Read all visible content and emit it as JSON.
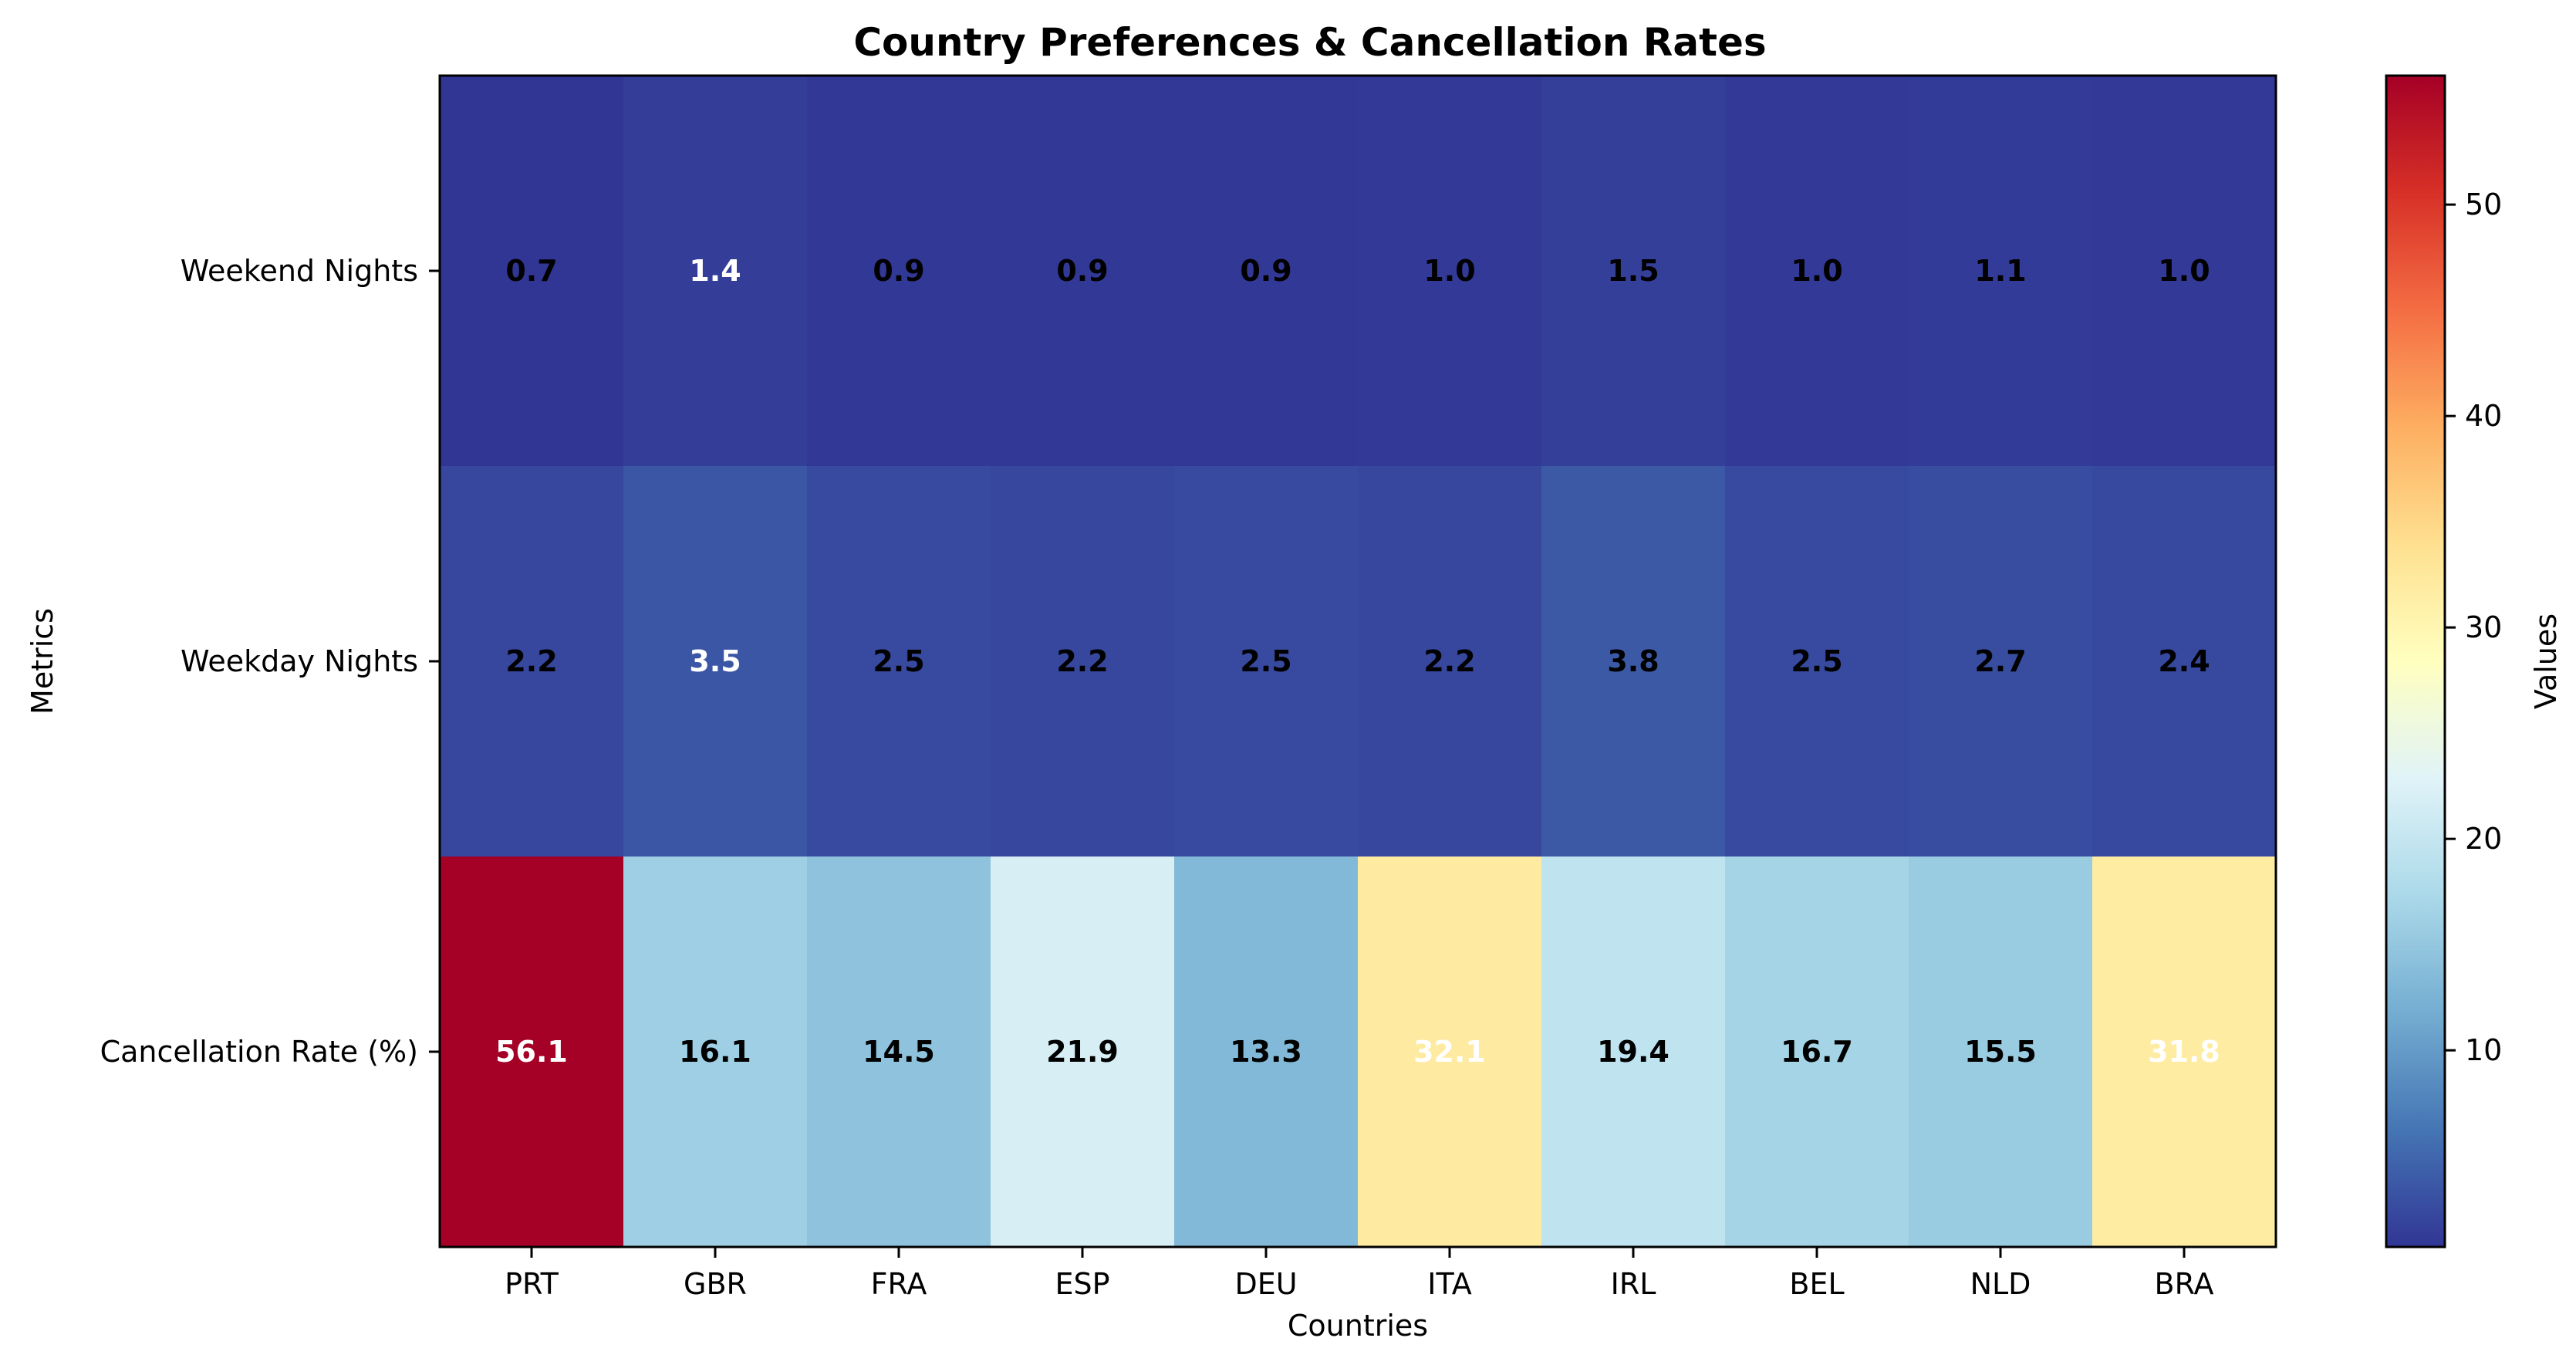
{
  "chart_data": {
    "type": "heatmap",
    "title": "Country Preferences & Cancellation Rates",
    "xlabel": "Countries",
    "ylabel": "Metrics",
    "x_categories": [
      "PRT",
      "GBR",
      "FRA",
      "ESP",
      "DEU",
      "ITA",
      "IRL",
      "BEL",
      "NLD",
      "BRA"
    ],
    "y_categories": [
      "Weekend Nights",
      "Weekday Nights",
      "Cancellation Rate (%)"
    ],
    "values": [
      [
        0.7,
        1.4,
        0.9,
        0.9,
        0.9,
        1.0,
        1.5,
        1.0,
        1.1,
        1.0
      ],
      [
        2.2,
        3.5,
        2.5,
        2.2,
        2.5,
        2.2,
        3.8,
        2.5,
        2.7,
        2.4
      ],
      [
        56.1,
        16.1,
        14.5,
        21.9,
        13.3,
        32.1,
        19.4,
        16.7,
        15.5,
        31.8
      ]
    ],
    "colorbar": {
      "label": "Values",
      "colormap": "RdYlBu_r",
      "range": [
        0.7,
        56.1
      ],
      "ticks": [
        10,
        20,
        30,
        40,
        50
      ]
    },
    "colors": {
      "colormap_stops": [
        "#313695",
        "#4575b4",
        "#74add1",
        "#abd9e9",
        "#e0f3f8",
        "#ffffbf",
        "#fee090",
        "#fdae61",
        "#f46d43",
        "#d73027",
        "#a50026"
      ],
      "label_light": "#ffffff",
      "label_dark": "#000000"
    }
  }
}
